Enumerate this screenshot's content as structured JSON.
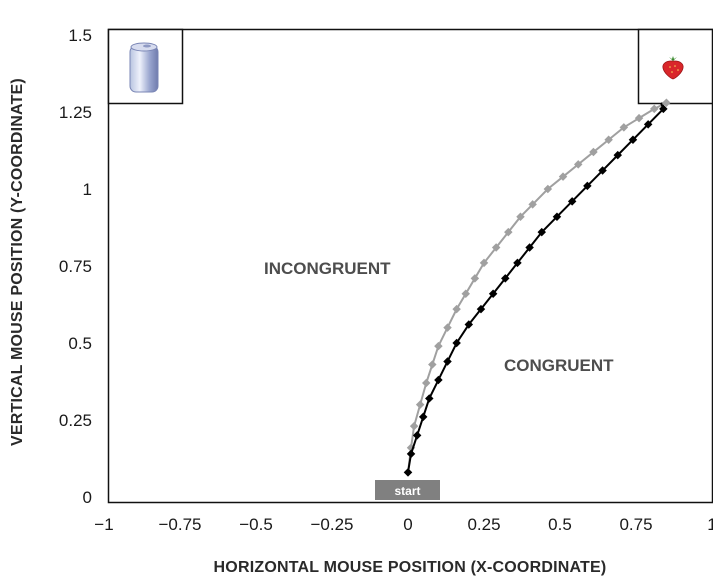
{
  "chart_data": {
    "type": "line",
    "xlabel": "HORIZONTAL MOUSE POSITION (X-COORDINATE)",
    "ylabel": "VERTICAL MOUSE POSITION (Y-COORDINATE)",
    "xlim": [
      -1,
      1
    ],
    "ylim": [
      0,
      1.5
    ],
    "x_ticks": [
      -1,
      -0.75,
      -0.5,
      -0.25,
      0,
      0.25,
      0.5,
      0.75,
      1
    ],
    "x_tick_labels": [
      "−1",
      "−0.75",
      "−0.5",
      "−0.25",
      "0",
      "0.25",
      "0.5",
      "0.75",
      "1"
    ],
    "y_ticks": [
      0,
      0.25,
      0.5,
      0.75,
      1,
      1.25,
      1.5
    ],
    "y_tick_labels": [
      "0",
      "0.25",
      "0.5",
      "0.75",
      "1",
      "1.25",
      "1.5"
    ],
    "grid": false,
    "annotations": [
      {
        "text": "INCONGRUENT",
        "color": "#4d4d4d"
      },
      {
        "text": "CONGRUENT",
        "color": "#4d4d4d"
      },
      {
        "text": "start",
        "color": "#ffffff"
      }
    ],
    "response_boxes": [
      {
        "icon": "can-icon",
        "side": "left"
      },
      {
        "icon": "strawberry-icon",
        "side": "right"
      }
    ],
    "series": [
      {
        "color": "#a0a0a0",
        "x": [
          0.0,
          0.01,
          0.02,
          0.04,
          0.06,
          0.08,
          0.1,
          0.13,
          0.16,
          0.19,
          0.22,
          0.25,
          0.29,
          0.33,
          0.37,
          0.41,
          0.46,
          0.51,
          0.56,
          0.61,
          0.66,
          0.71,
          0.76,
          0.81,
          0.85
        ],
        "y": [
          0.08,
          0.16,
          0.23,
          0.3,
          0.37,
          0.43,
          0.49,
          0.55,
          0.61,
          0.66,
          0.71,
          0.76,
          0.81,
          0.86,
          0.91,
          0.95,
          1.0,
          1.04,
          1.08,
          1.12,
          1.16,
          1.2,
          1.23,
          1.26,
          1.28
        ]
      },
      {
        "color": "#000000",
        "x": [
          0.0,
          0.01,
          0.03,
          0.05,
          0.07,
          0.1,
          0.13,
          0.16,
          0.2,
          0.24,
          0.28,
          0.32,
          0.36,
          0.4,
          0.44,
          0.49,
          0.54,
          0.59,
          0.64,
          0.69,
          0.74,
          0.79,
          0.84
        ],
        "y": [
          0.08,
          0.14,
          0.2,
          0.26,
          0.32,
          0.38,
          0.44,
          0.5,
          0.56,
          0.61,
          0.66,
          0.71,
          0.76,
          0.81,
          0.86,
          0.91,
          0.96,
          1.01,
          1.06,
          1.11,
          1.16,
          1.21,
          1.26
        ]
      }
    ]
  }
}
